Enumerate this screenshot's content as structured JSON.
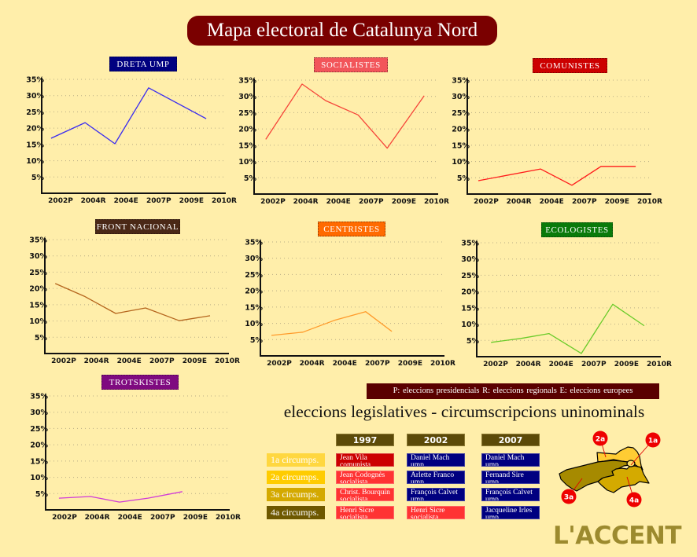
{
  "header": {
    "title": "Mapa electoral de Catalunya Nord"
  },
  "chart_data": [
    {
      "type": "line",
      "title": "DRETA UMP",
      "badge_color": "#000080",
      "categories": [
        "2002P",
        "2004R",
        "2004E",
        "2007P",
        "2009E",
        "2010R"
      ],
      "yticks": [
        5,
        10,
        15,
        20,
        25,
        30,
        35
      ],
      "ylim": [
        0,
        35
      ],
      "xlabel": "",
      "ylabel": "%",
      "grid": true,
      "series": [
        {
          "name": "DRETA UMP",
          "color": "#3a2cf0",
          "points": [
            {
              "x": -0.29,
              "y": 16.9
            },
            {
              "x": 0.75,
              "y": 21.7
            },
            {
              "x": 1.66,
              "y": 15.2
            },
            {
              "x": 2.69,
              "y": 32.4
            },
            {
              "x": 4.45,
              "y": 22.9
            }
          ]
        }
      ]
    },
    {
      "type": "line",
      "title": "SOCIALISTES",
      "badge_color": "#f2555a",
      "categories": [
        "2002P",
        "2004R",
        "2004E",
        "2007P",
        "2009E",
        "2010R"
      ],
      "yticks": [
        5,
        10,
        15,
        20,
        25,
        30,
        35
      ],
      "ylim": [
        0,
        35
      ],
      "xlabel": "",
      "ylabel": "%",
      "grid": true,
      "series": [
        {
          "name": "SOCIALISTES",
          "color": "#f5453a",
          "points": [
            {
              "x": -0.22,
              "y": 16.8
            },
            {
              "x": 0.89,
              "y": 33.8
            },
            {
              "x": 1.61,
              "y": 28.7
            },
            {
              "x": 2.6,
              "y": 24.3
            },
            {
              "x": 3.49,
              "y": 14.1
            },
            {
              "x": 4.62,
              "y": 30.2
            }
          ]
        }
      ]
    },
    {
      "type": "line",
      "title": "COMUNISTES",
      "badge_color": "#cc0000",
      "categories": [
        "2002P",
        "2004R",
        "2004E",
        "2007P",
        "2009E",
        "2010R"
      ],
      "yticks": [
        5,
        10,
        15,
        20,
        25,
        30,
        35
      ],
      "ylim": [
        0,
        35
      ],
      "xlabel": "",
      "ylabel": "%",
      "grid": true,
      "series": [
        {
          "name": "COMUNISTES",
          "color": "#ff1a1a",
          "points": [
            {
              "x": -0.24,
              "y": 4.1
            },
            {
              "x": 1.66,
              "y": 7.7
            },
            {
              "x": 2.62,
              "y": 2.7
            },
            {
              "x": 3.51,
              "y": 8.5
            },
            {
              "x": 4.57,
              "y": 8.5
            }
          ]
        }
      ]
    },
    {
      "type": "line",
      "title": "FRONT NACIONAL",
      "badge_color": "#4a2816",
      "categories": [
        "2002P",
        "2004R",
        "2004E",
        "2007P",
        "2009E",
        "2010R"
      ],
      "yticks": [
        5,
        10,
        15,
        20,
        25,
        30,
        35
      ],
      "ylim": [
        0,
        35
      ],
      "xlabel": "",
      "ylabel": "%",
      "grid": true,
      "series": [
        {
          "name": "FRONT NACIONAL",
          "color": "#b5651d",
          "points": [
            {
              "x": -0.26,
              "y": 21.5
            },
            {
              "x": 0.63,
              "y": 17.6
            },
            {
              "x": 1.59,
              "y": 12.3
            },
            {
              "x": 2.5,
              "y": 14.0
            },
            {
              "x": 3.53,
              "y": 10.1
            },
            {
              "x": 4.47,
              "y": 11.6
            }
          ]
        }
      ]
    },
    {
      "type": "line",
      "title": "CENTRISTES",
      "badge_color": "#ff6a00",
      "categories": [
        "2002P",
        "2004R",
        "2004E",
        "2007P",
        "2009E",
        "2010R"
      ],
      "yticks": [
        5,
        10,
        15,
        20,
        25,
        30,
        35
      ],
      "ylim": [
        0,
        35
      ],
      "xlabel": "",
      "ylabel": "%",
      "grid": true,
      "series": [
        {
          "name": "CENTRISTES",
          "color": "#ff9a2a",
          "points": [
            {
              "x": -0.24,
              "y": 6.3
            },
            {
              "x": 0.72,
              "y": 7.3
            },
            {
              "x": 1.68,
              "y": 10.9
            },
            {
              "x": 2.64,
              "y": 13.6
            },
            {
              "x": 3.44,
              "y": 7.5
            }
          ]
        }
      ]
    },
    {
      "type": "line",
      "title": "ECOLOGISTES",
      "badge_color": "#0a7a0a",
      "categories": [
        "2002P",
        "2004R",
        "2004E",
        "2007P",
        "2009E",
        "2010R"
      ],
      "yticks": [
        5,
        10,
        15,
        20,
        25,
        30,
        35
      ],
      "ylim": [
        0,
        35
      ],
      "xlabel": "",
      "ylabel": "%",
      "grid": true,
      "series": [
        {
          "name": "ECOLOGISTES",
          "color": "#6acb2a",
          "points": [
            {
              "x": -0.14,
              "y": 4.4
            },
            {
              "x": 0.77,
              "y": 5.6
            },
            {
              "x": 1.63,
              "y": 7.1
            },
            {
              "x": 2.62,
              "y": 1.0
            },
            {
              "x": 3.58,
              "y": 16.1
            },
            {
              "x": 4.54,
              "y": 9.5
            }
          ]
        }
      ]
    },
    {
      "type": "line",
      "title": "TROTSKISTES",
      "badge_color": "#7f0a80",
      "categories": [
        "2002P",
        "2004R",
        "2004E",
        "2007P",
        "2009E",
        "2010R"
      ],
      "yticks": [
        5,
        10,
        15,
        20,
        25,
        30,
        35
      ],
      "ylim": [
        0,
        35
      ],
      "xlabel": "",
      "ylabel": "%",
      "grid": true,
      "series": [
        {
          "name": "TROTSKISTES",
          "color": "#d03ad8",
          "points": [
            {
              "x": -0.17,
              "y": 3.6
            },
            {
              "x": 0.79,
              "y": 4.1
            },
            {
              "x": 1.68,
              "y": 2.4
            },
            {
              "x": 2.55,
              "y": 3.6
            },
            {
              "x": 3.6,
              "y": 5.6
            }
          ]
        }
      ]
    }
  ],
  "legend": {
    "text": "P: eleccions presidencials   R: eleccions regionals   E: eleccions europees"
  },
  "legislatives": {
    "title": "eleccions legislatives - circumscripcions uninominals",
    "years": [
      "1997",
      "2002",
      "2007"
    ],
    "party_colors": {
      "comunista": "#cc0000",
      "socialista": "#ff3333",
      "ump": "#000080"
    },
    "rows": [
      {
        "label": "1a circumps.",
        "color": "#ffd740",
        "cells": [
          {
            "name": "Jean Vila",
            "party": "comunista"
          },
          {
            "name": "Daniel Mach",
            "party": "ump"
          },
          {
            "name": "Daniel Mach",
            "party": "ump"
          }
        ]
      },
      {
        "label": "2a circumps.",
        "color": "#ffcc00",
        "cells": [
          {
            "name": "Jean Codognès",
            "party": "socialista"
          },
          {
            "name": "Arlette Franco",
            "party": "ump"
          },
          {
            "name": "Fernand Sire",
            "party": "ump"
          }
        ]
      },
      {
        "label": "3a circumps.",
        "color": "#d4a900",
        "cells": [
          {
            "name": "Christ. Bourquin",
            "party": "socialista"
          },
          {
            "name": "François Calvet",
            "party": "ump"
          },
          {
            "name": "François Calvet",
            "party": "ump"
          }
        ]
      },
      {
        "label": "4a circumps.",
        "color": "#6e5800",
        "cells": [
          {
            "name": "Henri Sicre",
            "party": "socialista"
          },
          {
            "name": "Henri Sicre",
            "party": "socialista"
          },
          {
            "name": "Jacqueline Irles",
            "party": "ump"
          }
        ]
      }
    ]
  },
  "map": {
    "labels": [
      "1a",
      "2a",
      "3a",
      "4a"
    ]
  },
  "logo": {
    "text": "L'ACCENT"
  }
}
